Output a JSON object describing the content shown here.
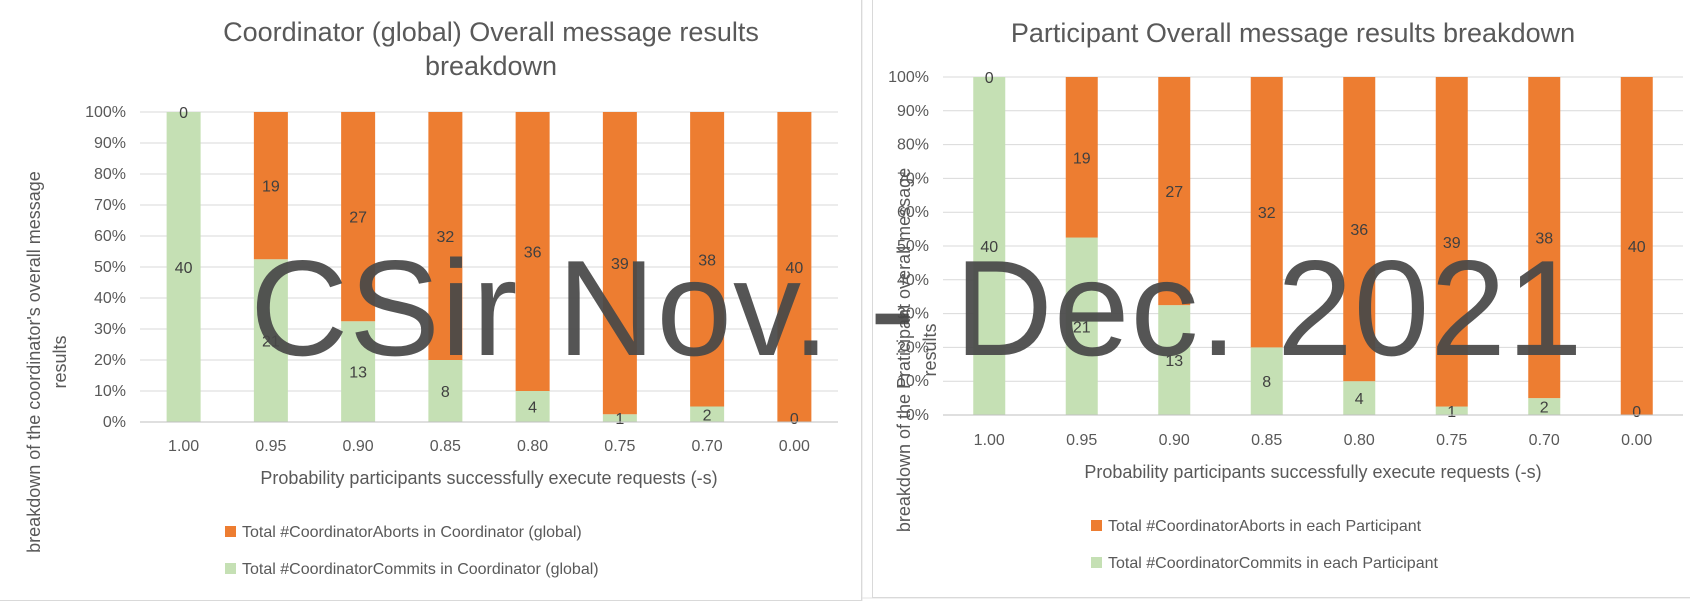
{
  "colors": {
    "aborts": "#ED7D31",
    "commits": "#C5E0B4",
    "grid": "#D9D9D9",
    "text": "#595959"
  },
  "watermark": "CSir Nov. - Dec. 2021",
  "chart_data": [
    {
      "type": "bar",
      "stacked": "percent",
      "title": "Coordinator (global) Overall message results breakdown",
      "title_lines": [
        "Coordinator (global) Overall message results",
        "breakdown"
      ],
      "xlabel": "Probability participants successfully execute requests (-s)",
      "ylabel": "breakdown of the coordinator's overall message results",
      "ylabel_lines": [
        "breakdown of the coordinator's overall message",
        "results"
      ],
      "ylim": [
        0,
        100
      ],
      "yticks": [
        "0%",
        "10%",
        "20%",
        "30%",
        "40%",
        "50%",
        "60%",
        "70%",
        "80%",
        "90%",
        "100%"
      ],
      "grid": true,
      "legend_position": "bottom",
      "categories": [
        "1.00",
        "0.95",
        "0.90",
        "0.85",
        "0.80",
        "0.75",
        "0.70",
        "0.00"
      ],
      "series": [
        {
          "name": "Total #CoordinatorCommits in Coordinator (global)",
          "color": "#C5E0B4",
          "values": [
            40,
            21,
            13,
            8,
            4,
            1,
            2,
            0
          ]
        },
        {
          "name": "Total #CoordinatorAborts in Coordinator (global)",
          "color": "#ED7D31",
          "values": [
            0,
            19,
            27,
            32,
            36,
            39,
            38,
            40
          ]
        }
      ],
      "legend_order": [
        1,
        0
      ]
    },
    {
      "type": "bar",
      "stacked": "percent",
      "title": "Participant Overall message results breakdown",
      "title_lines": [
        "Participant Overall message results breakdown"
      ],
      "xlabel": "Probability participants successfully execute requests (-s)",
      "ylabel": "breakdown of the Praticipant overall message results",
      "ylabel_lines": [
        "breakdown of the Praticipant overall message",
        "results"
      ],
      "ylim": [
        0,
        100
      ],
      "yticks": [
        "0%",
        "10%",
        "20%",
        "30%",
        "40%",
        "50%",
        "60%",
        "70%",
        "80%",
        "90%",
        "100%"
      ],
      "grid": true,
      "legend_position": "bottom",
      "categories": [
        "1.00",
        "0.95",
        "0.90",
        "0.85",
        "0.80",
        "0.75",
        "0.70",
        "0.00"
      ],
      "series": [
        {
          "name": "Total #CoordinatorCommits in each Participant",
          "color": "#C5E0B4",
          "values": [
            40,
            21,
            13,
            8,
            4,
            1,
            2,
            0
          ]
        },
        {
          "name": "Total #CoordinatorAborts in each Participant",
          "color": "#ED7D31",
          "values": [
            0,
            19,
            27,
            32,
            36,
            39,
            38,
            40
          ]
        }
      ],
      "legend_order": [
        1,
        0
      ]
    }
  ]
}
